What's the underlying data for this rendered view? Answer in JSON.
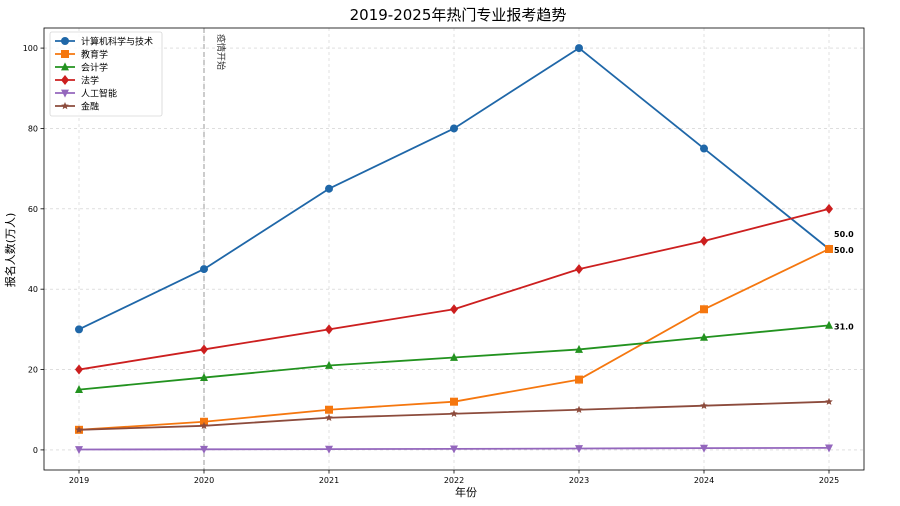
{
  "chart_data": {
    "type": "line",
    "title": "2019-2025年热门专业报考趋势",
    "xlabel": "年份",
    "ylabel": "报名人数(万人)",
    "x": [
      2019,
      2020,
      2021,
      2022,
      2023,
      2024,
      2025
    ],
    "x_tick_labels": [
      "2019",
      "2020",
      "2021",
      "2022",
      "2023",
      "2024",
      "2025"
    ],
    "ylim": [
      -5,
      105
    ],
    "y_ticks": [
      0,
      20,
      40,
      60,
      80,
      100
    ],
    "y_tick_labels": [
      "0",
      "20",
      "40",
      "60",
      "80",
      "100"
    ],
    "grid": true,
    "legend_position": "top-left",
    "series": [
      {
        "name": "计算机科学与技术",
        "color": "#1f67a8",
        "marker": "circle",
        "values": [
          30,
          45,
          65,
          80,
          100,
          75,
          50
        ]
      },
      {
        "name": "教育学",
        "color": "#f5770f",
        "marker": "square",
        "values": [
          5,
          7,
          10,
          12,
          17.5,
          35,
          50
        ]
      },
      {
        "name": "会计学",
        "color": "#22921f",
        "marker": "triangle-up",
        "values": [
          15,
          18,
          21,
          23,
          25,
          28,
          31
        ]
      },
      {
        "name": "法学",
        "color": "#cc1f1f",
        "marker": "diamond",
        "values": [
          20,
          25,
          30,
          35,
          45,
          52,
          60
        ]
      },
      {
        "name": "人工智能",
        "color": "#9467bd",
        "marker": "triangle-down",
        "values": [
          0.1,
          0.15,
          0.2,
          0.25,
          0.35,
          0.45,
          0.5
        ]
      },
      {
        "name": "金融",
        "color": "#8c4b3c",
        "marker": "star",
        "values": [
          5,
          6,
          8,
          9,
          10,
          11,
          12
        ]
      }
    ],
    "data_labels": [
      {
        "x": 2025,
        "y": 50,
        "text": "50.0"
      },
      {
        "x": 2025,
        "y": 50,
        "text": "50.0"
      },
      {
        "x": 2025,
        "y": 31,
        "text": "31.0"
      }
    ],
    "annotations": [
      {
        "x": 2020,
        "text": "疫情开始",
        "style": "vertical-dashed-line"
      }
    ]
  }
}
